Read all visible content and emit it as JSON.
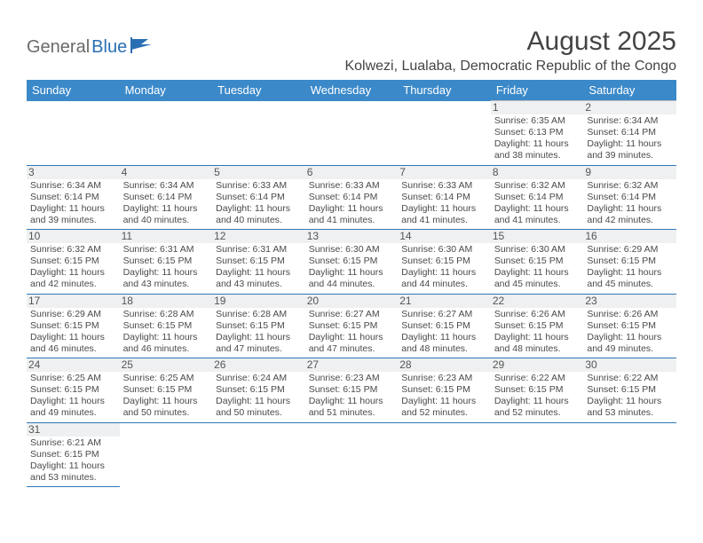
{
  "logo": {
    "part1": "General",
    "part2": "Blue"
  },
  "title": "August 2025",
  "location": "Kolwezi, Lualaba, Democratic Republic of the Congo",
  "weekdays": [
    "Sunday",
    "Monday",
    "Tuesday",
    "Wednesday",
    "Thursday",
    "Friday",
    "Saturday"
  ],
  "colors": {
    "header_bg": "#3b89c9",
    "header_text": "#ffffff",
    "row_divider": "#2f77b8",
    "cell_border": "#bfbfbf",
    "daynum_bg": "#eef0f1",
    "text": "#4a4a4a",
    "logo_gray": "#6a6a6a",
    "logo_blue": "#2a6fb3"
  },
  "weeks": [
    [
      null,
      null,
      null,
      null,
      null,
      {
        "n": "1",
        "sr": "Sunrise: 6:35 AM",
        "ss": "Sunset: 6:13 PM",
        "d1": "Daylight: 11 hours",
        "d2": "and 38 minutes."
      },
      {
        "n": "2",
        "sr": "Sunrise: 6:34 AM",
        "ss": "Sunset: 6:14 PM",
        "d1": "Daylight: 11 hours",
        "d2": "and 39 minutes."
      }
    ],
    [
      {
        "n": "3",
        "sr": "Sunrise: 6:34 AM",
        "ss": "Sunset: 6:14 PM",
        "d1": "Daylight: 11 hours",
        "d2": "and 39 minutes."
      },
      {
        "n": "4",
        "sr": "Sunrise: 6:34 AM",
        "ss": "Sunset: 6:14 PM",
        "d1": "Daylight: 11 hours",
        "d2": "and 40 minutes."
      },
      {
        "n": "5",
        "sr": "Sunrise: 6:33 AM",
        "ss": "Sunset: 6:14 PM",
        "d1": "Daylight: 11 hours",
        "d2": "and 40 minutes."
      },
      {
        "n": "6",
        "sr": "Sunrise: 6:33 AM",
        "ss": "Sunset: 6:14 PM",
        "d1": "Daylight: 11 hours",
        "d2": "and 41 minutes."
      },
      {
        "n": "7",
        "sr": "Sunrise: 6:33 AM",
        "ss": "Sunset: 6:14 PM",
        "d1": "Daylight: 11 hours",
        "d2": "and 41 minutes."
      },
      {
        "n": "8",
        "sr": "Sunrise: 6:32 AM",
        "ss": "Sunset: 6:14 PM",
        "d1": "Daylight: 11 hours",
        "d2": "and 41 minutes."
      },
      {
        "n": "9",
        "sr": "Sunrise: 6:32 AM",
        "ss": "Sunset: 6:14 PM",
        "d1": "Daylight: 11 hours",
        "d2": "and 42 minutes."
      }
    ],
    [
      {
        "n": "10",
        "sr": "Sunrise: 6:32 AM",
        "ss": "Sunset: 6:15 PM",
        "d1": "Daylight: 11 hours",
        "d2": "and 42 minutes."
      },
      {
        "n": "11",
        "sr": "Sunrise: 6:31 AM",
        "ss": "Sunset: 6:15 PM",
        "d1": "Daylight: 11 hours",
        "d2": "and 43 minutes."
      },
      {
        "n": "12",
        "sr": "Sunrise: 6:31 AM",
        "ss": "Sunset: 6:15 PM",
        "d1": "Daylight: 11 hours",
        "d2": "and 43 minutes."
      },
      {
        "n": "13",
        "sr": "Sunrise: 6:30 AM",
        "ss": "Sunset: 6:15 PM",
        "d1": "Daylight: 11 hours",
        "d2": "and 44 minutes."
      },
      {
        "n": "14",
        "sr": "Sunrise: 6:30 AM",
        "ss": "Sunset: 6:15 PM",
        "d1": "Daylight: 11 hours",
        "d2": "and 44 minutes."
      },
      {
        "n": "15",
        "sr": "Sunrise: 6:30 AM",
        "ss": "Sunset: 6:15 PM",
        "d1": "Daylight: 11 hours",
        "d2": "and 45 minutes."
      },
      {
        "n": "16",
        "sr": "Sunrise: 6:29 AM",
        "ss": "Sunset: 6:15 PM",
        "d1": "Daylight: 11 hours",
        "d2": "and 45 minutes."
      }
    ],
    [
      {
        "n": "17",
        "sr": "Sunrise: 6:29 AM",
        "ss": "Sunset: 6:15 PM",
        "d1": "Daylight: 11 hours",
        "d2": "and 46 minutes."
      },
      {
        "n": "18",
        "sr": "Sunrise: 6:28 AM",
        "ss": "Sunset: 6:15 PM",
        "d1": "Daylight: 11 hours",
        "d2": "and 46 minutes."
      },
      {
        "n": "19",
        "sr": "Sunrise: 6:28 AM",
        "ss": "Sunset: 6:15 PM",
        "d1": "Daylight: 11 hours",
        "d2": "and 47 minutes."
      },
      {
        "n": "20",
        "sr": "Sunrise: 6:27 AM",
        "ss": "Sunset: 6:15 PM",
        "d1": "Daylight: 11 hours",
        "d2": "and 47 minutes."
      },
      {
        "n": "21",
        "sr": "Sunrise: 6:27 AM",
        "ss": "Sunset: 6:15 PM",
        "d1": "Daylight: 11 hours",
        "d2": "and 48 minutes."
      },
      {
        "n": "22",
        "sr": "Sunrise: 6:26 AM",
        "ss": "Sunset: 6:15 PM",
        "d1": "Daylight: 11 hours",
        "d2": "and 48 minutes."
      },
      {
        "n": "23",
        "sr": "Sunrise: 6:26 AM",
        "ss": "Sunset: 6:15 PM",
        "d1": "Daylight: 11 hours",
        "d2": "and 49 minutes."
      }
    ],
    [
      {
        "n": "24",
        "sr": "Sunrise: 6:25 AM",
        "ss": "Sunset: 6:15 PM",
        "d1": "Daylight: 11 hours",
        "d2": "and 49 minutes."
      },
      {
        "n": "25",
        "sr": "Sunrise: 6:25 AM",
        "ss": "Sunset: 6:15 PM",
        "d1": "Daylight: 11 hours",
        "d2": "and 50 minutes."
      },
      {
        "n": "26",
        "sr": "Sunrise: 6:24 AM",
        "ss": "Sunset: 6:15 PM",
        "d1": "Daylight: 11 hours",
        "d2": "and 50 minutes."
      },
      {
        "n": "27",
        "sr": "Sunrise: 6:23 AM",
        "ss": "Sunset: 6:15 PM",
        "d1": "Daylight: 11 hours",
        "d2": "and 51 minutes."
      },
      {
        "n": "28",
        "sr": "Sunrise: 6:23 AM",
        "ss": "Sunset: 6:15 PM",
        "d1": "Daylight: 11 hours",
        "d2": "and 52 minutes."
      },
      {
        "n": "29",
        "sr": "Sunrise: 6:22 AM",
        "ss": "Sunset: 6:15 PM",
        "d1": "Daylight: 11 hours",
        "d2": "and 52 minutes."
      },
      {
        "n": "30",
        "sr": "Sunrise: 6:22 AM",
        "ss": "Sunset: 6:15 PM",
        "d1": "Daylight: 11 hours",
        "d2": "and 53 minutes."
      }
    ],
    [
      {
        "n": "31",
        "sr": "Sunrise: 6:21 AM",
        "ss": "Sunset: 6:15 PM",
        "d1": "Daylight: 11 hours",
        "d2": "and 53 minutes."
      },
      null,
      null,
      null,
      null,
      null,
      null
    ]
  ]
}
